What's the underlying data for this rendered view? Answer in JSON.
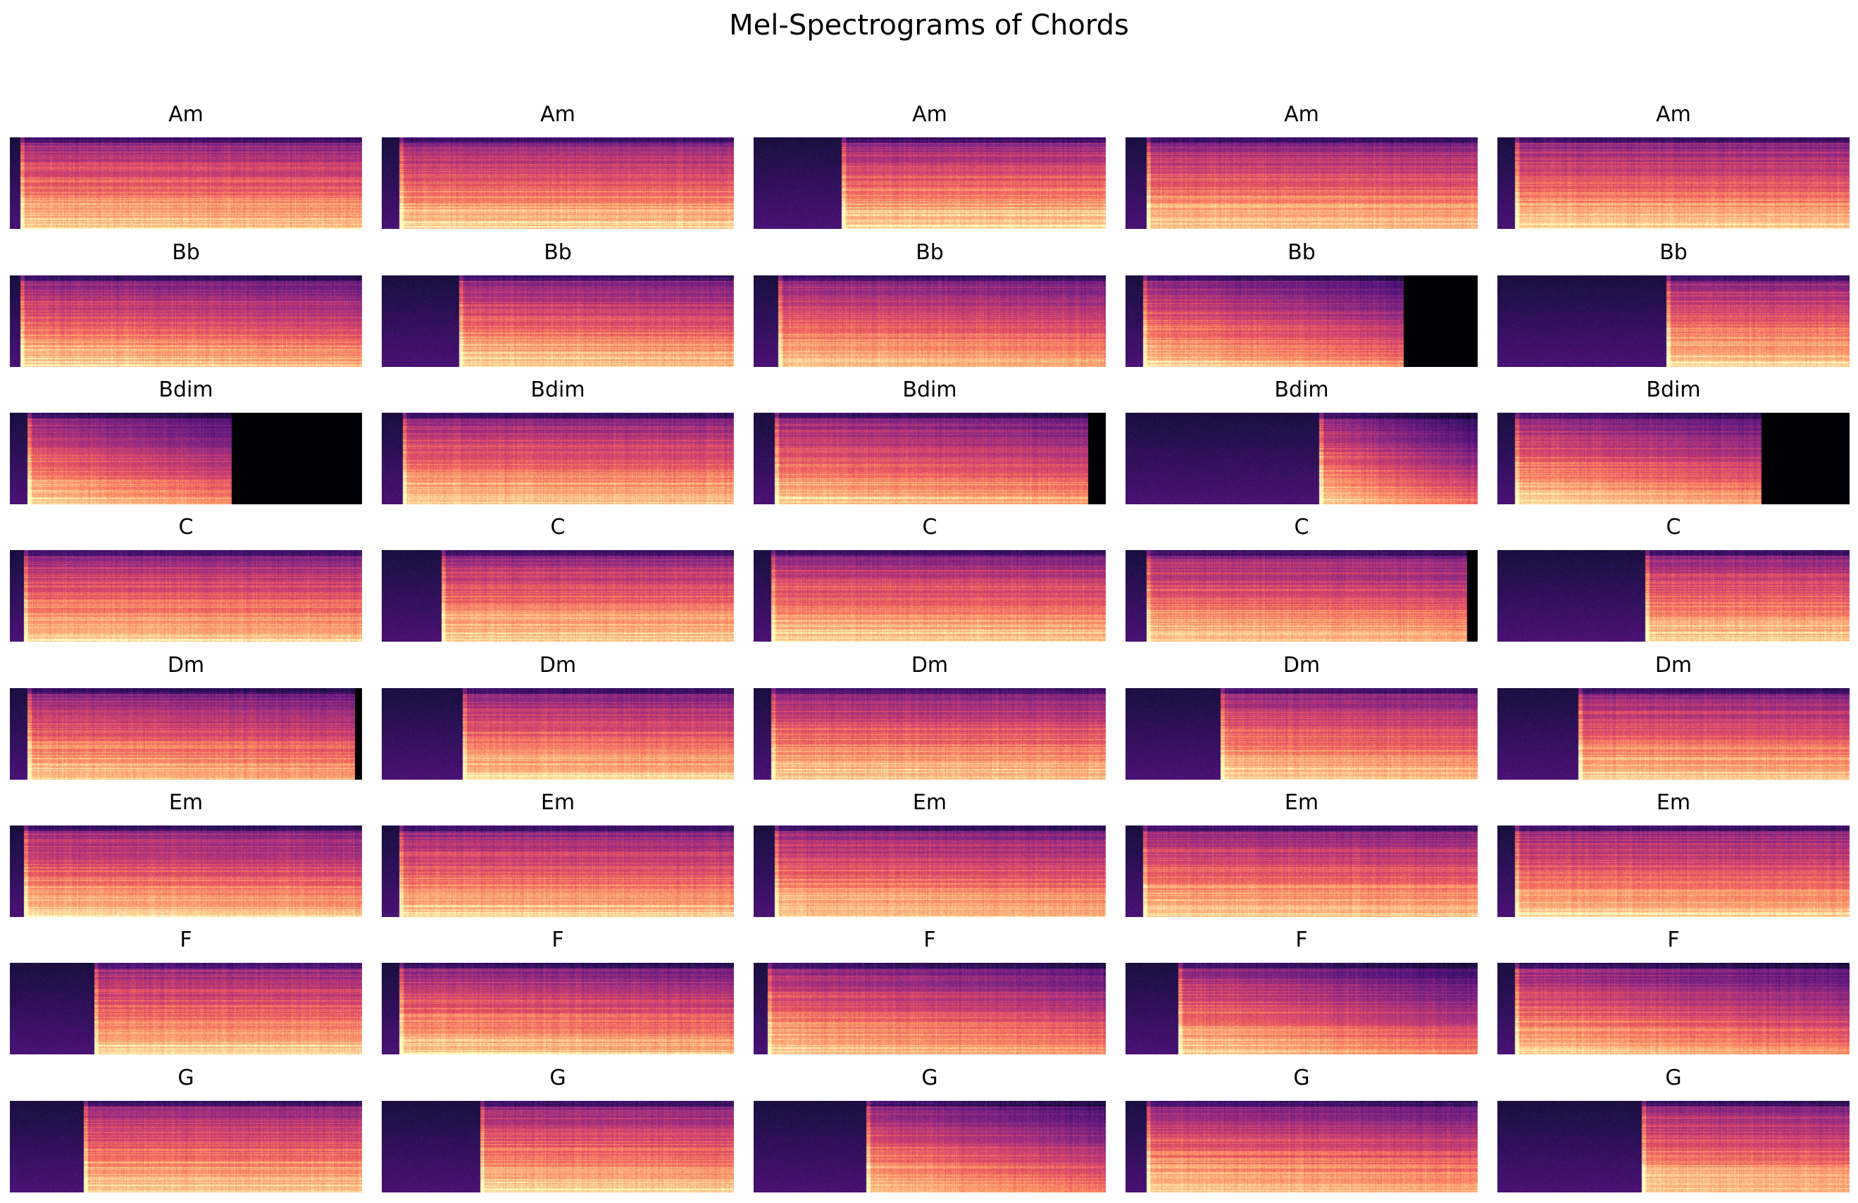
{
  "chart_data": {
    "type": "heatmap",
    "title": "Mel-Spectrograms of Chords",
    "colormap": "magma",
    "grid": false,
    "axes": "off",
    "rows": 8,
    "cols": 5,
    "panels": [
      {
        "label": "Am",
        "onset": 0.03,
        "gap": [
          0.0,
          0.0
        ],
        "decay": 0.1
      },
      {
        "label": "Am",
        "onset": 0.05,
        "gap": [
          0.0,
          0.0
        ],
        "decay": 0.05
      },
      {
        "label": "Am",
        "onset": 0.25,
        "gap": [
          0.0,
          0.0
        ],
        "decay": 0.0
      },
      {
        "label": "Am",
        "onset": 0.06,
        "gap": [
          0.0,
          0.0
        ],
        "decay": 0.08
      },
      {
        "label": "Am",
        "onset": 0.05,
        "gap": [
          0.0,
          0.0
        ],
        "decay": 0.1
      },
      {
        "label": "Bb",
        "onset": 0.03,
        "gap": [
          0.0,
          0.0
        ],
        "decay": 0.25
      },
      {
        "label": "Bb",
        "onset": 0.22,
        "gap": [
          0.0,
          0.0
        ],
        "decay": 0.15
      },
      {
        "label": "Bb",
        "onset": 0.07,
        "gap": [
          0.0,
          0.0
        ],
        "decay": 0.2
      },
      {
        "label": "Bb",
        "onset": 0.05,
        "gap": [
          0.79,
          1.0
        ],
        "decay": 0.55
      },
      {
        "label": "Bb",
        "onset": 0.48,
        "gap": [
          0.0,
          0.0
        ],
        "decay": 0.05
      },
      {
        "label": "Bdim",
        "onset": 0.05,
        "gap": [
          0.63,
          1.0
        ],
        "decay": 0.7
      },
      {
        "label": "Bdim",
        "onset": 0.06,
        "gap": [
          0.0,
          0.0
        ],
        "decay": 0.1
      },
      {
        "label": "Bdim",
        "onset": 0.06,
        "gap": [
          0.95,
          1.0
        ],
        "decay": 0.3
      },
      {
        "label": "Bdim",
        "onset": 0.55,
        "gap": [
          0.0,
          0.0
        ],
        "decay": 0.6
      },
      {
        "label": "Bdim",
        "onset": 0.05,
        "gap": [
          0.75,
          1.0
        ],
        "decay": 0.45
      },
      {
        "label": "C",
        "onset": 0.04,
        "gap": [
          0.0,
          0.0
        ],
        "decay": 0.1
      },
      {
        "label": "C",
        "onset": 0.17,
        "gap": [
          0.0,
          0.0
        ],
        "decay": 0.05
      },
      {
        "label": "C",
        "onset": 0.05,
        "gap": [
          0.0,
          0.0
        ],
        "decay": 0.1
      },
      {
        "label": "C",
        "onset": 0.06,
        "gap": [
          0.97,
          1.0
        ],
        "decay": 0.2
      },
      {
        "label": "C",
        "onset": 0.42,
        "gap": [
          0.0,
          0.0
        ],
        "decay": 0.05
      },
      {
        "label": "Dm",
        "onset": 0.05,
        "gap": [
          0.98,
          1.0
        ],
        "decay": 0.25
      },
      {
        "label": "Dm",
        "onset": 0.23,
        "gap": [
          0.0,
          0.0
        ],
        "decay": 0.1
      },
      {
        "label": "Dm",
        "onset": 0.05,
        "gap": [
          0.0,
          0.0
        ],
        "decay": 0.1
      },
      {
        "label": "Dm",
        "onset": 0.27,
        "gap": [
          0.0,
          0.0
        ],
        "decay": 0.15
      },
      {
        "label": "Dm",
        "onset": 0.23,
        "gap": [
          0.0,
          0.0
        ],
        "decay": 0.1
      },
      {
        "label": "Em",
        "onset": 0.04,
        "gap": [
          0.0,
          0.0
        ],
        "decay": 0.15
      },
      {
        "label": "Em",
        "onset": 0.05,
        "gap": [
          0.0,
          0.0
        ],
        "decay": 0.1
      },
      {
        "label": "Em",
        "onset": 0.06,
        "gap": [
          0.0,
          0.0
        ],
        "decay": 0.15
      },
      {
        "label": "Em",
        "onset": 0.05,
        "gap": [
          0.0,
          0.0
        ],
        "decay": 0.1
      },
      {
        "label": "Em",
        "onset": 0.05,
        "gap": [
          0.0,
          0.0
        ],
        "decay": 0.1
      },
      {
        "label": "F",
        "onset": 0.24,
        "gap": [
          0.0,
          0.0
        ],
        "decay": 0.05
      },
      {
        "label": "F",
        "onset": 0.05,
        "gap": [
          0.0,
          0.0
        ],
        "decay": 0.2
      },
      {
        "label": "F",
        "onset": 0.04,
        "gap": [
          0.0,
          0.0
        ],
        "decay": 0.35
      },
      {
        "label": "F",
        "onset": 0.15,
        "gap": [
          0.0,
          0.0
        ],
        "decay": 0.5
      },
      {
        "label": "F",
        "onset": 0.05,
        "gap": [
          0.0,
          0.0
        ],
        "decay": 0.4
      },
      {
        "label": "G",
        "onset": 0.21,
        "gap": [
          0.0,
          0.0
        ],
        "decay": 0.05
      },
      {
        "label": "G",
        "onset": 0.28,
        "gap": [
          0.0,
          0.0
        ],
        "decay": 0.1
      },
      {
        "label": "G",
        "onset": 0.32,
        "gap": [
          0.0,
          0.0
        ],
        "decay": 0.45
      },
      {
        "label": "G",
        "onset": 0.06,
        "gap": [
          0.0,
          0.0
        ],
        "decay": 0.25
      },
      {
        "label": "G",
        "onset": 0.41,
        "gap": [
          0.0,
          0.0
        ],
        "decay": 0.15
      }
    ]
  }
}
